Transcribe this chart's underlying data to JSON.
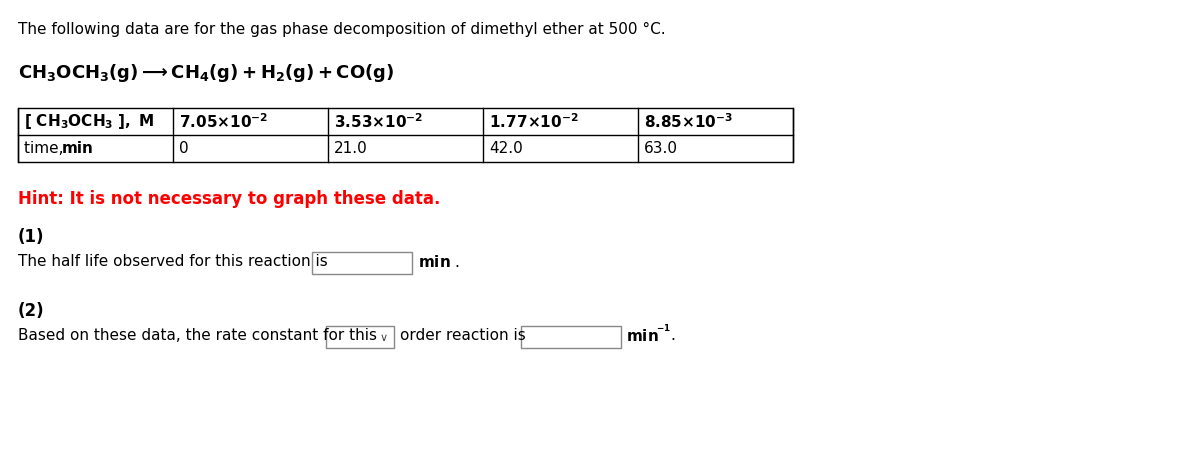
{
  "intro_text": "The following data are for the gas phase decomposition of dimethyl ether at 500 °C.",
  "hint_text": "Hint: It is not necessary to graph these data.",
  "q1_label": "(1)",
  "q1_text": "The half life observed for this reaction is",
  "q1_suffix": "min .",
  "q2_label": "(2)",
  "q2_text": "Based on these data, the rate constant for this",
  "q2_mid": "order reaction is",
  "bg_color": "#ffffff",
  "text_color": "#000000",
  "hint_color": "#ff0000",
  "table_conc": [
    "7.05×10⁻²",
    "3.53×10⁻²",
    "1.77×10⁻²",
    "8.85×10⁻³"
  ],
  "table_time": [
    "0",
    "21.0",
    "42.0",
    "63.0"
  ],
  "intro_fontsize": 11,
  "eq_fontsize": 13,
  "table_fontsize": 11,
  "body_fontsize": 11,
  "label_fontsize": 12
}
